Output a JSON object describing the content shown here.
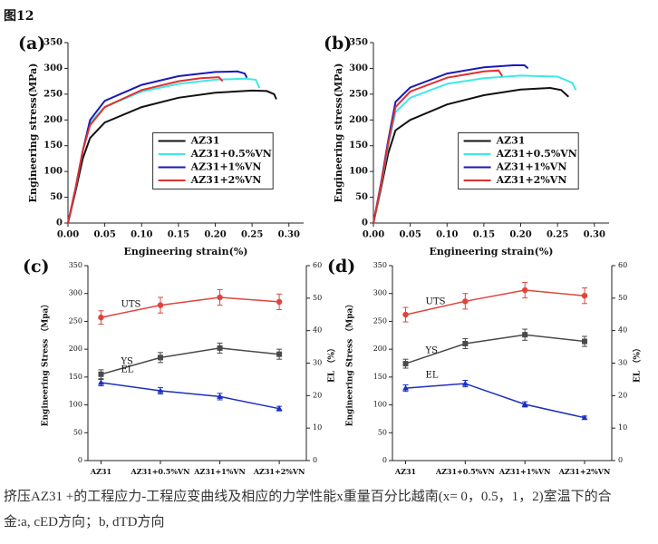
{
  "header": "图12",
  "chart_data": [
    {
      "type": "line",
      "label": "(a)",
      "xlabel": "Engineering strain(%)",
      "ylabel": "Engineering stress(MPa)",
      "xlim": [
        0,
        0.32
      ],
      "ylim": [
        0,
        350
      ],
      "xticks": [
        {
          "value": 0,
          "label": "0.00"
        },
        {
          "value": 0.05,
          "label": "0.05"
        },
        {
          "value": 0.1,
          "label": "0.10"
        },
        {
          "value": 0.15,
          "label": "0.15"
        },
        {
          "value": 0.2,
          "label": "0.20"
        },
        {
          "value": 0.25,
          "label": "0.25"
        },
        {
          "value": 0.3,
          "label": "0.30"
        }
      ],
      "yticks": [
        0,
        50,
        100,
        150,
        200,
        250,
        300,
        350
      ],
      "legend": "center right",
      "series": [
        {
          "name": "AZ31",
          "color": "#111111",
          "x": [
            0,
            0.01,
            0.02,
            0.03,
            0.05,
            0.1,
            0.15,
            0.2,
            0.25,
            0.27,
            0.28,
            0.283
          ],
          "values": [
            0,
            60,
            125,
            165,
            195,
            225,
            243,
            253,
            257,
            256,
            250,
            240
          ]
        },
        {
          "name": "AZ31+0.5%VN",
          "color": "#3ee8e8",
          "x": [
            0,
            0.01,
            0.02,
            0.03,
            0.05,
            0.1,
            0.15,
            0.2,
            0.24,
            0.255,
            0.26
          ],
          "values": [
            0,
            65,
            140,
            195,
            225,
            255,
            270,
            278,
            280,
            278,
            262
          ]
        },
        {
          "name": "AZ31+1%VN",
          "color": "#1a1ab8",
          "x": [
            0,
            0.01,
            0.02,
            0.03,
            0.05,
            0.1,
            0.15,
            0.2,
            0.23,
            0.24,
            0.243
          ],
          "values": [
            0,
            65,
            140,
            200,
            237,
            268,
            285,
            293,
            294,
            290,
            282
          ]
        },
        {
          "name": "AZ31+2%VN",
          "color": "#e03030",
          "x": [
            0,
            0.01,
            0.02,
            0.03,
            0.05,
            0.1,
            0.15,
            0.18,
            0.205,
            0.21
          ],
          "values": [
            0,
            65,
            140,
            190,
            225,
            258,
            275,
            281,
            283,
            275
          ]
        }
      ]
    },
    {
      "type": "line",
      "label": "(b)",
      "xlabel": "Engineering strain(%)",
      "ylabel": "Engineering stress(MPa)",
      "xlim": [
        0,
        0.32
      ],
      "ylim": [
        0,
        350
      ],
      "xticks": [
        {
          "value": 0,
          "label": "0.00"
        },
        {
          "value": 0.05,
          "label": "0.05"
        },
        {
          "value": 0.1,
          "label": "0.10"
        },
        {
          "value": 0.15,
          "label": "0.15"
        },
        {
          "value": 0.2,
          "label": "0.20"
        },
        {
          "value": 0.25,
          "label": "0.25"
        },
        {
          "value": 0.3,
          "label": "0.30"
        }
      ],
      "yticks": [
        0,
        50,
        100,
        150,
        200,
        250,
        300,
        350
      ],
      "legend": "center right",
      "series": [
        {
          "name": "AZ31",
          "color": "#111111",
          "x": [
            0,
            0.01,
            0.02,
            0.03,
            0.05,
            0.1,
            0.15,
            0.2,
            0.24,
            0.255,
            0.265
          ],
          "values": [
            0,
            65,
            135,
            180,
            200,
            230,
            248,
            259,
            262,
            258,
            245
          ]
        },
        {
          "name": "AZ31+0.5%VN",
          "color": "#3ee8e8",
          "x": [
            0,
            0.01,
            0.02,
            0.03,
            0.05,
            0.1,
            0.15,
            0.2,
            0.25,
            0.27,
            0.275
          ],
          "values": [
            0,
            70,
            150,
            215,
            243,
            270,
            281,
            286,
            284,
            272,
            258
          ]
        },
        {
          "name": "AZ31+1%VN",
          "color": "#1a1ab8",
          "x": [
            0,
            0.01,
            0.02,
            0.03,
            0.05,
            0.1,
            0.15,
            0.19,
            0.205,
            0.21
          ],
          "values": [
            0,
            75,
            160,
            235,
            263,
            290,
            302,
            306,
            306,
            300
          ]
        },
        {
          "name": "AZ31+2%VN",
          "color": "#e03030",
          "x": [
            0,
            0.01,
            0.02,
            0.03,
            0.05,
            0.1,
            0.15,
            0.17,
            0.175
          ],
          "values": [
            0,
            72,
            155,
            225,
            255,
            282,
            294,
            296,
            285
          ]
        }
      ]
    },
    {
      "type": "errorline",
      "label": "(c)",
      "ylabel": "Engineering Stress （Mpa）",
      "y2label": "EL （%）",
      "categories": [
        "AZ31",
        "AZ31+0.5%VN",
        "AZ31+1%VN",
        "AZ31+2%VN"
      ],
      "ylim": [
        0,
        350
      ],
      "yticks": [
        0,
        50,
        100,
        150,
        200,
        250,
        300,
        350
      ],
      "y2lim": [
        0,
        60
      ],
      "y2ticks": [
        0,
        10,
        20,
        30,
        40,
        50,
        60
      ],
      "series": [
        {
          "name": "UTS",
          "color": "#e0443c",
          "marker": "circle",
          "values": [
            257,
            279,
            293,
            285
          ],
          "errors": [
            12,
            14,
            14,
            14
          ]
        },
        {
          "name": "YS",
          "color": "#4a4a4a",
          "marker": "square",
          "values": [
            155,
            185,
            202,
            191
          ],
          "errors": [
            8,
            9,
            9,
            9
          ]
        },
        {
          "name": "EL",
          "color": "#1c2ec0",
          "marker": "triangle",
          "axis": "y2",
          "values": [
            24,
            21.5,
            19.7,
            16
          ],
          "errors": [
            1,
            1,
            1,
            0.7
          ]
        }
      ]
    },
    {
      "type": "errorline",
      "label": "(d)",
      "ylabel": "Engineering Stress （Mpa）",
      "y2label": "EL （%）",
      "categories": [
        "AZ31",
        "AZ31+0.5%VN",
        "AZ31+1%VN",
        "AZ31+2%VN"
      ],
      "ylim": [
        0,
        350
      ],
      "yticks": [
        0,
        50,
        100,
        150,
        200,
        250,
        300,
        350
      ],
      "y2lim": [
        0,
        60
      ],
      "y2ticks": [
        0,
        10,
        20,
        30,
        40,
        50,
        60
      ],
      "series": [
        {
          "name": "UTS",
          "color": "#e0443c",
          "marker": "circle",
          "values": [
            262,
            286,
            306,
            296
          ],
          "errors": [
            13,
            14,
            14,
            14
          ]
        },
        {
          "name": "YS",
          "color": "#4a4a4a",
          "marker": "square",
          "values": [
            174,
            210,
            226,
            214
          ],
          "errors": [
            8,
            9,
            10,
            9
          ]
        },
        {
          "name": "EL",
          "color": "#1c2ec0",
          "marker": "triangle",
          "axis": "y2",
          "values": [
            22.3,
            23.7,
            17.3,
            13.2
          ],
          "errors": [
            1,
            1,
            0.8,
            0.5
          ]
        }
      ]
    }
  ],
  "caption": [
    "挤压AZ31 +的工程应力-工程应变曲线及相应的力学性能x重量百分比越南(x= 0，0.5，1，2)室温下的合",
    "金:a, cED方向；b, dTD方向"
  ]
}
